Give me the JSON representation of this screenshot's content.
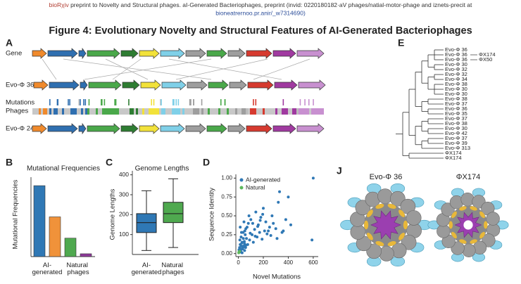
{
  "header": {
    "brand": "bioRχiv",
    "line1": " preprint to Novelty and Structural phages. aI-Generated Bacteriophages, preprint (invid: 0220180182·aV phages/natial-motor-phage and iznets-precit at",
    "line2": "bioneatrernoo.pr.anir/_w7314690)"
  },
  "figure": {
    "title": "Figure 4: Evolutionary Novelty and Structural Features of AI-Generated Bacteriophages",
    "panel_letters": [
      "A",
      "B",
      "C",
      "D",
      "E",
      "J"
    ],
    "panel_a_rows": [
      "Gene",
      "Evo-Φ 36",
      "Mutations",
      "Phages",
      "Evo-Φ 24"
    ],
    "tree_leaves": [
      "Evo-Φ 36",
      "Evo-Φ 36",
      "Evo-Φ 36",
      "Evo-Φ 30",
      "Evo-Φ 32",
      "Evo-Φ 32",
      "Evo-Φ 34",
      "Evo-Φ 38",
      "Evo-Φ 30",
      "Evo-Φ 30",
      "Evo-Φ 38",
      "Evo-Φ 37",
      "Evo-Φ 36",
      "Evo-Φ 35",
      "Evo-Φ 37",
      "Evo-Φ 38",
      "Evo-Φ 30",
      "Evo-Φ 42",
      "Evo-Φ 37",
      "Evo-Φ 39",
      "Evo-Φ 313",
      "ΦX174",
      "ΦX174"
    ],
    "tree_side_labels": [
      "ΦX174",
      "ΦX50"
    ],
    "structure_labels": [
      "Evo-Φ 36",
      "ΦX174"
    ]
  },
  "chart_data": [
    {
      "type": "bar",
      "title": "Mutational Frequencies",
      "y_label": "Mutational Frequencies",
      "categories": [
        "AI-generated",
        null,
        "Natural phages",
        null
      ],
      "values": [
        0.5,
        0.28,
        0.13,
        0.02
      ],
      "colors": [
        "#2f78b5",
        "#f0923a",
        "#4fa94f",
        "#8e3a9a"
      ],
      "ylim": [
        0,
        0.56
      ]
    },
    {
      "type": "box",
      "title": "Genome Lengths",
      "y_label": "Genome Lengths",
      "categories": [
        "AI-generated",
        "Natural phages"
      ],
      "boxes": [
        {
          "whisker_low": 20,
          "q1": 110,
          "median": 160,
          "q3": 205,
          "whisker_high": 320
        },
        {
          "whisker_low": 35,
          "q1": 160,
          "median": 205,
          "q3": 262,
          "whisker_high": 380
        }
      ],
      "colors": [
        "#2f78b5",
        "#4fa94f"
      ],
      "ylim": [
        0,
        420
      ],
      "yticks": [
        100,
        200,
        300,
        400
      ]
    },
    {
      "type": "scatter",
      "x_label": "Novel Mutations",
      "y_label": "Sequence Identity",
      "xlim": [
        -20,
        640
      ],
      "ylim": [
        -0.04,
        1.05
      ],
      "xticks": [
        0,
        200,
        400,
        600
      ],
      "yticks": [
        {
          "value": 0,
          "label": "0.00"
        },
        {
          "value": 0.25,
          "label": "0.25"
        },
        {
          "value": 0.5,
          "label": "0.50"
        },
        {
          "value": 0.75,
          "label": "0.75"
        },
        {
          "value": 1,
          "label": "1.00"
        }
      ],
      "legend": "upper left",
      "series": [
        {
          "name": "AI-generated",
          "color": "#2f78b5",
          "x": [
            5,
            10,
            15,
            20,
            25,
            30,
            35,
            40,
            45,
            50,
            55,
            60,
            8,
            12,
            18,
            22,
            28,
            33,
            38,
            42,
            48,
            52,
            58,
            65,
            70,
            75,
            80,
            90,
            100,
            110,
            120,
            130,
            140,
            150,
            160,
            170,
            180,
            190,
            200,
            210,
            220,
            230,
            250,
            270,
            300,
            320,
            350,
            380,
            400,
            420,
            600,
            590,
            15,
            25,
            45,
            60,
            85,
            95,
            115,
            135,
            155,
            175,
            195,
            240,
            260,
            280,
            310,
            330,
            360,
            20,
            30,
            50
          ],
          "values": [
            0.05,
            0.08,
            0.12,
            0.06,
            0.1,
            0.15,
            0.07,
            0.2,
            0.09,
            0.13,
            0.25,
            0.11,
            0.03,
            0.18,
            0.04,
            0.22,
            0.14,
            0.06,
            0.28,
            0.1,
            0.16,
            0.3,
            0.08,
            0.2,
            0.35,
            0.12,
            0.4,
            0.18,
            0.45,
            0.25,
            0.15,
            0.32,
            0.55,
            0.22,
            0.38,
            0.28,
            0.48,
            0.19,
            0.6,
            0.3,
            0.42,
            0.26,
            0.35,
            0.5,
            0.33,
            0.68,
            0.28,
            0.45,
            0.75,
            0.38,
            1.0,
            0.18,
            0.35,
            0.28,
            0.42,
            0.33,
            0.5,
            0.27,
            0.4,
            0.23,
            0.36,
            0.44,
            0.52,
            0.3,
            0.24,
            0.4,
            0.2,
            0.82,
            0.3,
            0.02,
            0.01,
            0.04
          ]
        },
        {
          "name": "Natural",
          "color": "#5cb85c",
          "x": [
            5,
            10,
            3
          ],
          "values": [
            0.02,
            0.03,
            0.01
          ]
        }
      ]
    }
  ]
}
